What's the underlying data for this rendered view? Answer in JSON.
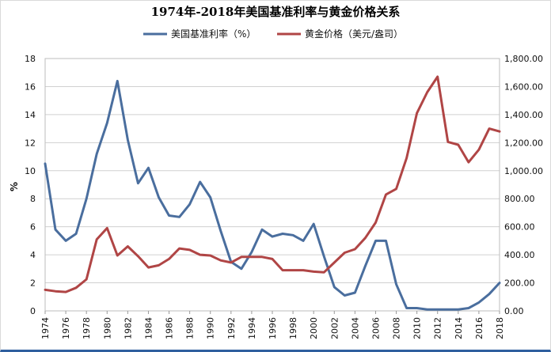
{
  "chart_data": {
    "type": "line",
    "title": "1974年-2018年美国基准利率与黄金价格关系",
    "ylabel_left": "%",
    "ylim_left": [
      0,
      18
    ],
    "yticks_left": [
      "0",
      "2",
      "4",
      "6",
      "8",
      "10",
      "12",
      "14",
      "16",
      "18"
    ],
    "ylim_right": [
      0,
      1800
    ],
    "yticks_right": [
      "0.00",
      "200.00",
      "400.00",
      "600.00",
      "800.00",
      "1,000.00",
      "1,200.00",
      "1,400.00",
      "1,600.00",
      "1,800.00"
    ],
    "xlim": [
      1974,
      2018
    ],
    "xticks": [
      "1974",
      "1976",
      "1978",
      "1980",
      "1982",
      "1984",
      "1986",
      "1988",
      "1990",
      "1992",
      "1994",
      "1996",
      "1998",
      "2000",
      "2002",
      "2004",
      "2006",
      "2008",
      "2010",
      "2012",
      "2014",
      "2016",
      "2018"
    ],
    "x": [
      1974,
      1975,
      1976,
      1977,
      1978,
      1979,
      1980,
      1981,
      1982,
      1983,
      1984,
      1985,
      1986,
      1987,
      1988,
      1989,
      1990,
      1991,
      1992,
      1993,
      1994,
      1995,
      1996,
      1997,
      1998,
      1999,
      2000,
      2001,
      2002,
      2003,
      2004,
      2005,
      2006,
      2007,
      2008,
      2009,
      2010,
      2011,
      2012,
      2013,
      2014,
      2015,
      2016,
      2017,
      2018
    ],
    "series": [
      {
        "name": "美国基准利率（%）",
        "axis": "left",
        "color": "#4a6e9e",
        "values": [
          10.5,
          5.8,
          5.0,
          5.5,
          8.0,
          11.2,
          13.4,
          16.4,
          12.2,
          9.1,
          10.2,
          8.1,
          6.8,
          6.7,
          7.6,
          9.2,
          8.1,
          5.7,
          3.5,
          3.0,
          4.2,
          5.8,
          5.3,
          5.5,
          5.4,
          5.0,
          6.2,
          3.9,
          1.7,
          1.1,
          1.3,
          3.2,
          5.0,
          5.0,
          1.9,
          0.2,
          0.2,
          0.1,
          0.1,
          0.1,
          0.1,
          0.2,
          0.6,
          1.2,
          2.0
        ]
      },
      {
        "name": "黄金价格（美元/盎司）",
        "axis": "right",
        "color": "#b04545",
        "values": [
          150,
          140,
          135,
          165,
          225,
          510,
          590,
          395,
          460,
          390,
          310,
          325,
          370,
          445,
          435,
          400,
          395,
          360,
          345,
          385,
          385,
          385,
          370,
          290,
          290,
          290,
          280,
          275,
          345,
          415,
          440,
          520,
          630,
          830,
          870,
          1090,
          1410,
          1560,
          1670,
          1205,
          1185,
          1060,
          1150,
          1300,
          1280
        ]
      }
    ]
  }
}
